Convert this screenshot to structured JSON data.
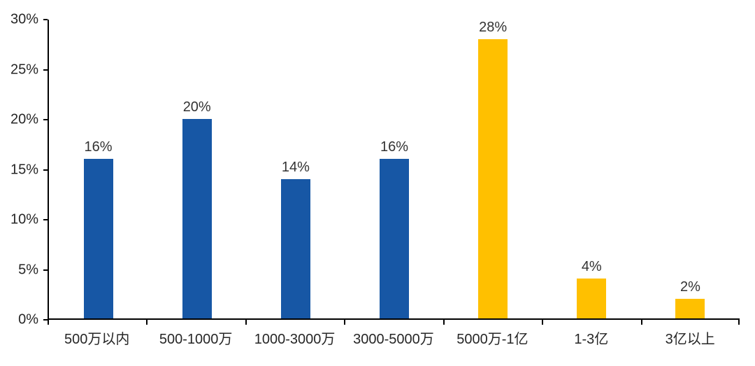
{
  "chart_data": {
    "type": "bar",
    "title": "",
    "xlabel": "",
    "ylabel": "",
    "categories": [
      "500万以内",
      "500-1000万",
      "1000-3000万",
      "3000-5000万",
      "5000万-1亿",
      "1-3亿",
      "3亿以上"
    ],
    "values": [
      16,
      20,
      14,
      16,
      28,
      4,
      2
    ],
    "value_labels": [
      "16%",
      "20%",
      "14%",
      "16%",
      "28%",
      "4%",
      "2%"
    ],
    "bar_colors": [
      "#1757A5",
      "#1757A5",
      "#1757A5",
      "#1757A5",
      "#FFC000",
      "#FFC000",
      "#FFC000"
    ],
    "ylim": [
      0,
      30
    ],
    "y_ticks": [
      "0%",
      "5%",
      "10%",
      "15%",
      "20%",
      "25%",
      "30%"
    ],
    "grid": false,
    "legend_position": "none",
    "colors": {
      "bar_blue": "#1757A5",
      "bar_yellow": "#FFC000",
      "axis_line": "#000000",
      "tick_text": "#262626",
      "data_label_text": "#333333",
      "background": "#ffffff"
    }
  }
}
